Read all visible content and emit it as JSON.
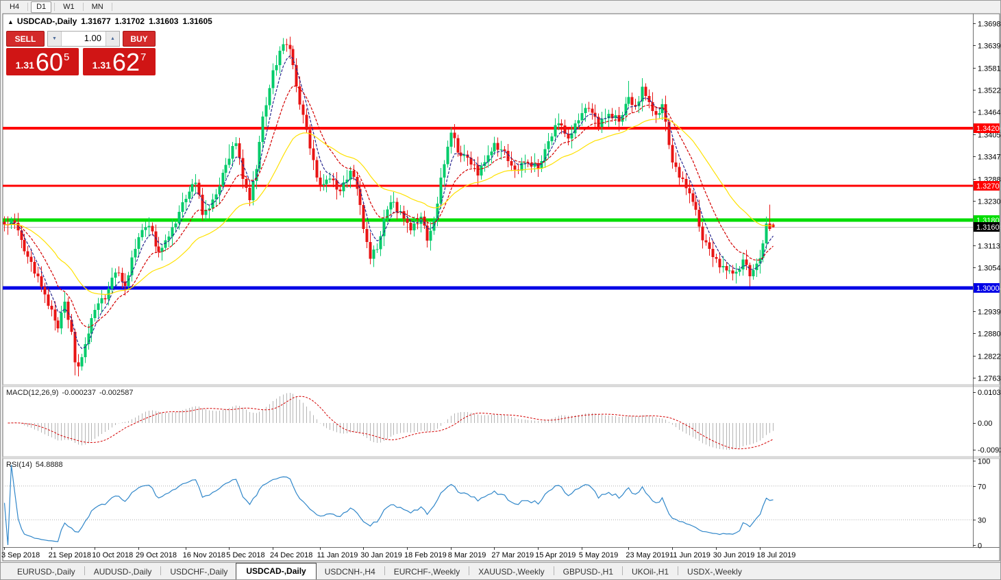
{
  "toolbar": {
    "timeframes": [
      {
        "label": "H4",
        "active": false
      },
      {
        "label": "D1",
        "active": true
      },
      {
        "label": "W1",
        "active": false
      },
      {
        "label": "MN",
        "active": false
      }
    ]
  },
  "chart_header": {
    "collapse_icon": "▲",
    "title": "USDCAD-,Daily",
    "open": "1.31677",
    "high": "1.31702",
    "low": "1.31603",
    "close": "1.31605"
  },
  "trade_panel": {
    "sell_label": "SELL",
    "buy_label": "BUY",
    "volume": "1.00",
    "down_arrow": "▼",
    "up_arrow": "▲",
    "sell_price": {
      "prefix": "1.31",
      "big": "60",
      "sup": "5"
    },
    "buy_price": {
      "prefix": "1.31",
      "big": "62",
      "sup": "7"
    }
  },
  "price_axis": {
    "tick_labels": [
      "1.36980",
      "1.36395",
      "1.35810",
      "1.35225",
      "1.34640",
      "1.34055",
      "1.33470",
      "1.32885",
      "1.32300",
      "1.31130",
      "1.30545",
      "1.29390",
      "1.28805",
      "1.28220",
      "1.27635"
    ],
    "tick_values": [
      1.3698,
      1.36395,
      1.3581,
      1.35225,
      1.3464,
      1.34055,
      1.3347,
      1.32885,
      1.323,
      1.3113,
      1.30545,
      1.2939,
      1.28805,
      1.2822,
      1.27635
    ]
  },
  "x_axis": {
    "labels": [
      "3 Sep 2018",
      "21 Sep 2018",
      "10 Oct 2018",
      "29 Oct 2018",
      "16 Nov 2018",
      "5 Dec 2018",
      "24 Dec 2018",
      "11 Jan 2019",
      "30 Jan 2019",
      "18 Feb 2019",
      "8 Mar 2019",
      "27 Mar 2019",
      "15 Apr 2019",
      "5 May 2019",
      "23 May 2019",
      "11 Jun 2019",
      "30 Jun 2019",
      "18 Jul 2019"
    ],
    "label_indices": [
      0,
      14,
      27,
      40,
      54,
      67,
      80,
      94,
      107,
      120,
      133,
      146,
      159,
      172,
      186,
      199,
      212,
      225
    ]
  },
  "macd": {
    "label": "MACD(12,26,9)",
    "value_main": "-0.000237",
    "value_signal": "-0.002587",
    "fast": 12,
    "slow": 26,
    "signal": 9,
    "axis_labels": [
      "0.010311",
      "0.00",
      "-0.009203"
    ],
    "axis_y": [
      571,
      616,
      655
    ],
    "histogram_color": "#b4b4b4",
    "signal_color": "#d40000"
  },
  "rsi": {
    "label": "RSI(14)",
    "value": "54.8888",
    "period": 14,
    "axis_labels": [
      "100",
      "70",
      "30",
      "0"
    ],
    "axis_values": [
      100,
      70,
      30,
      0
    ],
    "levels": [
      70,
      30
    ],
    "line_color": "#2f86c9",
    "level_color": "#adadad"
  },
  "chart_data": {
    "type": "candlestick",
    "symbol": "USDCAD",
    "timeframe": "Daily",
    "ohlc_current": {
      "open": 1.31677,
      "high": 1.31702,
      "low": 1.31603,
      "close": 1.31605
    },
    "candle_count": 230,
    "bull_color": "#00cb6a",
    "bear_color": "#e81414",
    "price_anchors": [
      [
        0,
        1.3165
      ],
      [
        3,
        1.3178
      ],
      [
        5,
        1.312
      ],
      [
        8,
        1.3065
      ],
      [
        11,
        1.3005
      ],
      [
        14,
        1.2935
      ],
      [
        16,
        1.29
      ],
      [
        18,
        1.2962
      ],
      [
        20,
        1.2878
      ],
      [
        21,
        1.2812
      ],
      [
        22,
        1.279
      ],
      [
        24,
        1.285
      ],
      [
        27,
        1.2948
      ],
      [
        30,
        1.2975
      ],
      [
        33,
        1.3048
      ],
      [
        36,
        1.3005
      ],
      [
        40,
        1.314
      ],
      [
        43,
        1.3168
      ],
      [
        46,
        1.3092
      ],
      [
        50,
        1.3155
      ],
      [
        54,
        1.324
      ],
      [
        57,
        1.3285
      ],
      [
        59,
        1.3195
      ],
      [
        62,
        1.3225
      ],
      [
        65,
        1.33
      ],
      [
        67,
        1.3345
      ],
      [
        69,
        1.339
      ],
      [
        71,
        1.329
      ],
      [
        73,
        1.3235
      ],
      [
        75,
        1.332
      ],
      [
        77,
        1.3445
      ],
      [
        80,
        1.357
      ],
      [
        83,
        1.3645
      ],
      [
        85,
        1.3635
      ],
      [
        86,
        1.358
      ],
      [
        88,
        1.349
      ],
      [
        90,
        1.3415
      ],
      [
        92,
        1.333
      ],
      [
        94,
        1.3268
      ],
      [
        97,
        1.3292
      ],
      [
        100,
        1.3252
      ],
      [
        103,
        1.331
      ],
      [
        105,
        1.3268
      ],
      [
        107,
        1.3158
      ],
      [
        109,
        1.3082
      ],
      [
        111,
        1.3105
      ],
      [
        113,
        1.318
      ],
      [
        115,
        1.323
      ],
      [
        118,
        1.32
      ],
      [
        121,
        1.3155
      ],
      [
        124,
        1.3185
      ],
      [
        126,
        1.313
      ],
      [
        128,
        1.3175
      ],
      [
        130,
        1.3285
      ],
      [
        133,
        1.3415
      ],
      [
        135,
        1.336
      ],
      [
        138,
        1.3342
      ],
      [
        141,
        1.3305
      ],
      [
        144,
        1.3348
      ],
      [
        146,
        1.3378
      ],
      [
        149,
        1.3355
      ],
      [
        152,
        1.3308
      ],
      [
        155,
        1.3332
      ],
      [
        159,
        1.3318
      ],
      [
        162,
        1.3385
      ],
      [
        165,
        1.3442
      ],
      [
        168,
        1.3392
      ],
      [
        171,
        1.3448
      ],
      [
        174,
        1.3478
      ],
      [
        177,
        1.3432
      ],
      [
        180,
        1.3458
      ],
      [
        183,
        1.3442
      ],
      [
        186,
        1.3502
      ],
      [
        188,
        1.3472
      ],
      [
        190,
        1.3528
      ],
      [
        192,
        1.3488
      ],
      [
        194,
        1.3452
      ],
      [
        196,
        1.3482
      ],
      [
        199,
        1.3332
      ],
      [
        202,
        1.3282
      ],
      [
        205,
        1.3232
      ],
      [
        208,
        1.3132
      ],
      [
        212,
        1.307
      ],
      [
        215,
        1.3048
      ],
      [
        218,
        1.3038
      ],
      [
        220,
        1.3072
      ],
      [
        222,
        1.3036
      ],
      [
        224,
        1.306
      ],
      [
        226,
        1.3112
      ],
      [
        227,
        1.3172
      ],
      [
        228,
        1.3155
      ],
      [
        229,
        1.31605
      ]
    ],
    "noise": [
      2,
      -3,
      5,
      -6,
      3,
      7,
      -5,
      -1,
      4,
      -7,
      6,
      -2,
      1,
      -5,
      8,
      -3,
      -6,
      4,
      2,
      -4,
      7,
      -8,
      3,
      -2
    ],
    "noise_amp": 0.0001,
    "wick_pattern": [
      14,
      22,
      9,
      18,
      26,
      11,
      16
    ],
    "wick_amp": 0.0001,
    "wick_overrides": {
      "21": [
        8,
        34
      ],
      "67": [
        38,
        8
      ],
      "186": [
        42,
        8
      ],
      "222": [
        6,
        26
      ],
      "228": [
        50,
        6
      ],
      "229": [
        3,
        1
      ]
    },
    "last_open": 1.31677,
    "last_close": 1.31605,
    "moving_averages": [
      {
        "name": "fast",
        "period": 5,
        "color": "#27278f",
        "dash": "4,2"
      },
      {
        "name": "medium",
        "period": 13,
        "color": "#d40000",
        "dash": "4,2"
      },
      {
        "name": "slow",
        "period": 34,
        "color": "#ffe100",
        "dash": ""
      }
    ],
    "horizontal_lines": [
      {
        "price": 1.34206,
        "label": "1.34206",
        "color": "#ff0000",
        "thickness": 4
      },
      {
        "price": 1.32701,
        "label": "1.32701",
        "color": "#ff0000",
        "thickness": 3
      },
      {
        "price": 1.31801,
        "label": "1.31801",
        "color": "#00dd00",
        "thickness": 5
      },
      {
        "price": 1.30004,
        "label": "1.30004",
        "color": "#0000e6",
        "thickness": 5
      }
    ],
    "current_price_line": {
      "price": 1.31605,
      "label": "1.31605",
      "line_color": "#bdbdbd",
      "label_bg": "#000000"
    }
  },
  "tabs": {
    "items": [
      {
        "label": "EURUSD-,Daily",
        "active": false
      },
      {
        "label": "AUDUSD-,Daily",
        "active": false
      },
      {
        "label": "USDCHF-,Daily",
        "active": false
      },
      {
        "label": "USDCAD-,Daily",
        "active": true
      },
      {
        "label": "USDCNH-,H4",
        "active": false
      },
      {
        "label": "EURCHF-,Weekly",
        "active": false
      },
      {
        "label": "XAUUSD-,Weekly",
        "active": false
      },
      {
        "label": "GBPUSD-,H1",
        "active": false
      },
      {
        "label": "UKOil-,H1",
        "active": false
      },
      {
        "label": "USDX-,Weekly",
        "active": false
      }
    ]
  }
}
